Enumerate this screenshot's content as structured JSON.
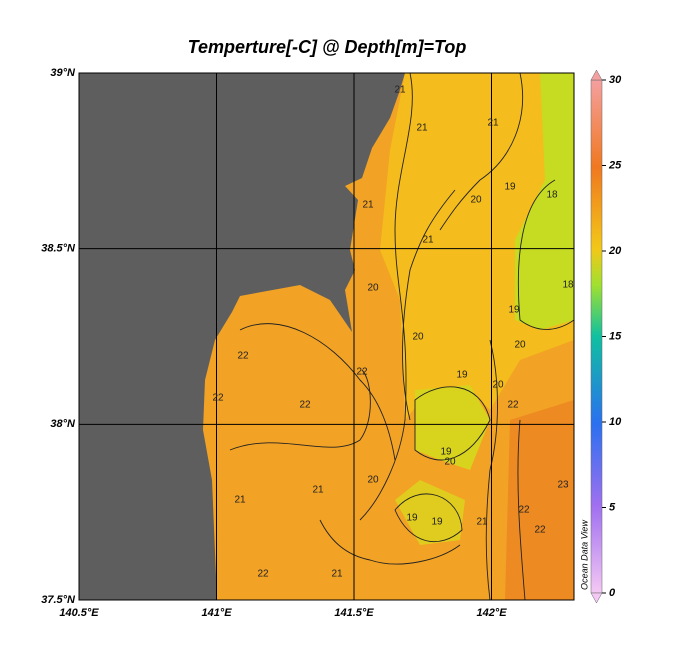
{
  "title": "Temperture[-C] @ Depth[m]=Top",
  "map": {
    "xlim": [
      140.5,
      142.3
    ],
    "ylim": [
      37.5,
      39
    ],
    "xticks": [
      {
        "value": 140.5,
        "label": "140.5°E"
      },
      {
        "value": 141,
        "label": "141°E"
      },
      {
        "value": 141.5,
        "label": "141.5°E"
      },
      {
        "value": 142,
        "label": "142°E"
      }
    ],
    "yticks": [
      {
        "value": 37.5,
        "label": "37.5°N"
      },
      {
        "value": 38,
        "label": "38°N"
      },
      {
        "value": 38.5,
        "label": "38.5°N"
      },
      {
        "value": 39,
        "label": "39°N"
      }
    ],
    "grid": true
  },
  "colorbar": {
    "lim": [
      0,
      30
    ],
    "ticks": [
      0,
      5,
      10,
      15,
      20,
      25,
      30
    ]
  },
  "watermark": "Ocean Data View",
  "contour_labels": [
    21,
    21,
    21,
    19,
    20,
    18,
    21,
    21,
    20,
    20,
    19,
    18,
    20,
    20,
    19,
    22,
    22,
    22,
    22,
    22,
    19,
    20,
    20,
    21,
    19,
    19,
    21,
    22,
    23,
    22,
    22,
    21,
    21
  ]
}
